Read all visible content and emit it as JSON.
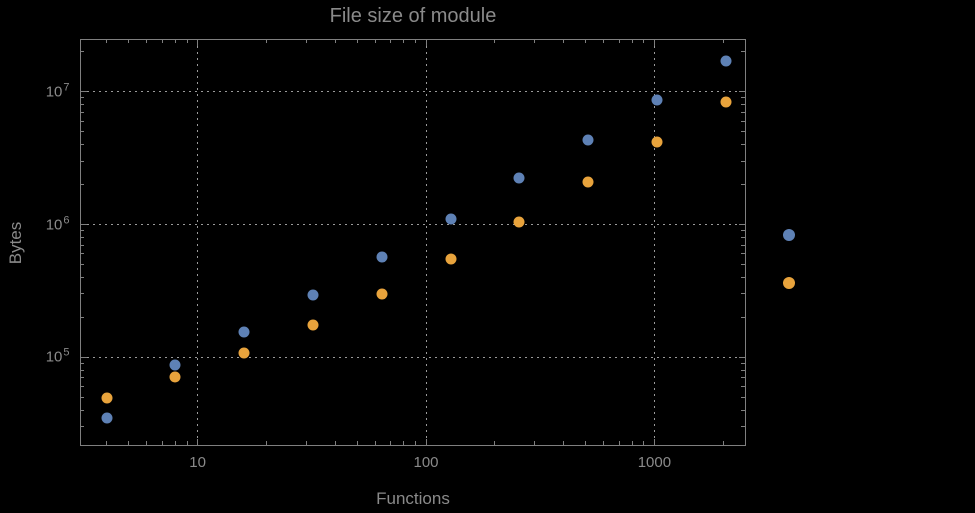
{
  "title": "File size of module",
  "colors": {
    "background": "#000000",
    "frame": "#7f7f7f",
    "gridline": "#9a9a9a",
    "text": "#8a8a8a",
    "series_blue": "#5e81b5",
    "series_orange": "#e8a33c"
  },
  "chart_data": {
    "type": "scatter",
    "title": "File size of module",
    "xlabel": "Functions",
    "ylabel": "Bytes",
    "x_scale": "log",
    "y_scale": "log",
    "grid": "dotted",
    "xlim": [
      3.07,
      2480
    ],
    "ylim": [
      22000,
      24800000
    ],
    "x_ticks": [
      {
        "value": 10,
        "label": "10"
      },
      {
        "value": 100,
        "label": "100"
      },
      {
        "value": 1000,
        "label": "1000"
      }
    ],
    "y_ticks": [
      {
        "value": 100000,
        "label": "10^5",
        "base": "10",
        "exp": "5"
      },
      {
        "value": 1000000,
        "label": "10^6",
        "base": "10",
        "exp": "6"
      },
      {
        "value": 10000000,
        "label": "10^7",
        "base": "10",
        "exp": "7"
      }
    ],
    "series": [
      {
        "name": "series-1-blue",
        "color": "#5e81b5",
        "x": [
          4,
          8,
          16,
          32,
          64,
          128,
          256,
          512,
          1024,
          2048
        ],
        "y": [
          35000,
          87000,
          154000,
          293000,
          566000,
          1110000,
          2230000,
          4310000,
          8630000,
          17000000
        ]
      },
      {
        "name": "series-2-orange",
        "color": "#e8a33c",
        "x": [
          4,
          8,
          16,
          32,
          64,
          128,
          256,
          512,
          1024,
          2048
        ],
        "y": [
          49000,
          71000,
          107000,
          174000,
          298000,
          547000,
          1040000,
          2080000,
          4170000,
          8340000
        ]
      }
    ],
    "legend": {
      "position": "right-center",
      "entries": [
        {
          "color": "#5e81b5",
          "label": ""
        },
        {
          "color": "#e8a33c",
          "label": ""
        }
      ]
    }
  }
}
